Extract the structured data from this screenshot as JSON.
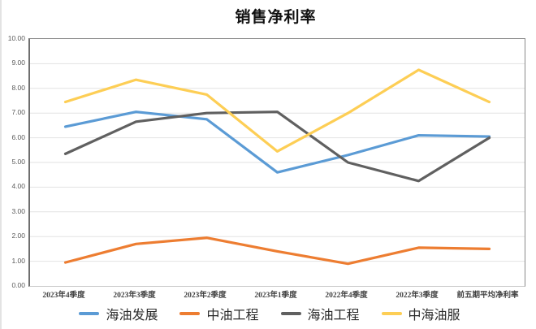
{
  "chart_data": {
    "type": "line",
    "title": "销售净利率",
    "categories": [
      "2023年4季度",
      "2023年3季度",
      "2023年2季度",
      "2023年1季度",
      "2022年4季度",
      "2022年3季度",
      "前五期平均净利率"
    ],
    "series": [
      {
        "name": "海油发展",
        "color": "#5B9BD5",
        "values": [
          6.45,
          7.05,
          6.75,
          4.6,
          5.3,
          6.1,
          6.05
        ]
      },
      {
        "name": "中油工程",
        "color": "#ED7D31",
        "values": [
          0.95,
          1.7,
          1.95,
          1.4,
          0.9,
          1.55,
          1.5
        ]
      },
      {
        "name": "海油工程",
        "color": "#606060",
        "values": [
          5.35,
          6.65,
          7.0,
          7.05,
          5.0,
          4.25,
          6.0
        ]
      },
      {
        "name": "中海油服",
        "color": "#FDCE55",
        "values": [
          7.45,
          8.35,
          7.75,
          5.45,
          7.0,
          8.75,
          7.45
        ]
      }
    ],
    "ylim": [
      0,
      10
    ],
    "ytick_labels_top_to_bottom": [
      "10.00",
      "9.00",
      "8.00",
      "7.00",
      "6.00",
      "5.00",
      "4.00",
      "3.00",
      "2.00",
      "1.00",
      "0.00"
    ],
    "grid": true,
    "gridline_color": "#e2e2e2",
    "legend_position": "bottom"
  }
}
